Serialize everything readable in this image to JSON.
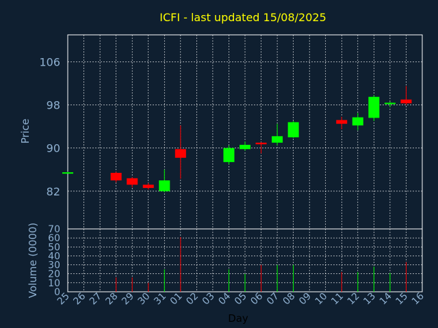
{
  "chart_data": {
    "type": "candlestick",
    "title": "ICFI - last updated 15/08/2025",
    "xlabel": "Day",
    "ylabel": "Price",
    "volume_label": "Volume (0000)",
    "categories": [
      "25",
      "26",
      "27",
      "28",
      "29",
      "30",
      "31",
      "01",
      "02",
      "03",
      "04",
      "05",
      "06",
      "07",
      "08",
      "09",
      "10",
      "11",
      "12",
      "13",
      "14",
      "15",
      "16"
    ],
    "price_ylim": [
      75,
      111
    ],
    "price_ticks": [
      "82",
      "90",
      "98",
      "106"
    ],
    "volume_ylim": [
      0,
      70
    ],
    "volume_ticks": [
      "0",
      "10",
      "20",
      "30",
      "40",
      "50",
      "60",
      "70"
    ],
    "colors": {
      "up": "#00ff00",
      "down": "#ff0000",
      "title": "#ffff00",
      "grid": "#ffffff",
      "axis_text": "#8fb0d0",
      "background": "#0f1f30"
    },
    "grid": true,
    "candles": [
      {
        "x": "25",
        "open": 85.5,
        "high": 85.6,
        "low": 85.3,
        "close": 85.5,
        "volume": 0
      },
      {
        "x": "28",
        "open": 85.4,
        "high": 85.6,
        "low": 83.6,
        "close": 84.0,
        "volume": 16
      },
      {
        "x": "29",
        "open": 84.4,
        "high": 84.6,
        "low": 82.7,
        "close": 83.2,
        "volume": 16
      },
      {
        "x": "30",
        "open": 83.2,
        "high": 83.5,
        "low": 82.3,
        "close": 82.6,
        "volume": 10
      },
      {
        "x": "31",
        "open": 82.0,
        "high": 86.0,
        "low": 81.8,
        "close": 84.0,
        "volume": 25
      },
      {
        "x": "01",
        "open": 89.8,
        "high": 94.2,
        "low": 84.3,
        "close": 88.2,
        "volume": 61
      },
      {
        "x": "04",
        "open": 87.4,
        "high": 90.5,
        "low": 87.0,
        "close": 90.0,
        "volume": 25
      },
      {
        "x": "05",
        "open": 89.8,
        "high": 91.2,
        "low": 89.5,
        "close": 90.6,
        "volume": 20
      },
      {
        "x": "06",
        "open": 91.0,
        "high": 91.1,
        "low": 89.0,
        "close": 90.7,
        "volume": 30
      },
      {
        "x": "07",
        "open": 91.0,
        "high": 94.5,
        "low": 90.5,
        "close": 92.2,
        "volume": 30
      },
      {
        "x": "08",
        "open": 92.0,
        "high": 95.0,
        "low": 91.9,
        "close": 94.8,
        "volume": 30
      },
      {
        "x": "11",
        "open": 95.2,
        "high": 95.8,
        "low": 93.5,
        "close": 94.5,
        "volume": 22
      },
      {
        "x": "12",
        "open": 94.2,
        "high": 96.5,
        "low": 93.3,
        "close": 95.7,
        "volume": 22
      },
      {
        "x": "13",
        "open": 95.6,
        "high": 99.8,
        "low": 95.0,
        "close": 99.5,
        "volume": 28
      },
      {
        "x": "14",
        "open": 98.2,
        "high": 98.6,
        "low": 97.6,
        "close": 98.4,
        "volume": 21
      },
      {
        "x": "15",
        "open": 99.0,
        "high": 101.5,
        "low": 98.0,
        "close": 98.3,
        "volume": 33
      }
    ]
  }
}
